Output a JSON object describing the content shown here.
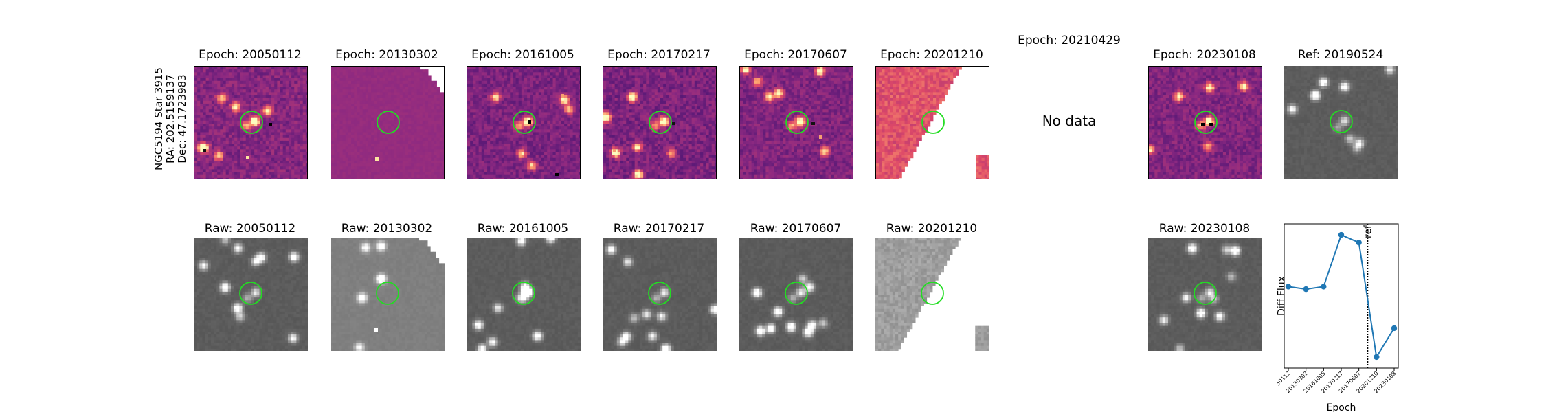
{
  "target": {
    "name": "NGC5194 Star 3915",
    "ra": "RA: 202.5159137",
    "dec": "Dec: 47.1723983"
  },
  "diff_row": {
    "titles": [
      "Epoch: 20050112",
      "Epoch: 20130302",
      "Epoch: 20161005",
      "Epoch: 20170217",
      "Epoch: 20170607",
      "Epoch: 20201210",
      "Epoch: 20210429",
      "Epoch: 20230108",
      "Ref: 20190524"
    ],
    "no_data_text": "No data"
  },
  "raw_row": {
    "titles": [
      "Raw: 20050112",
      "Raw: 20130302",
      "Raw: 20161005",
      "Raw: 20170217",
      "Raw: 20170607",
      "Raw: 20201210",
      "Raw: 20230108"
    ]
  },
  "colors": {
    "aperture_circle": "#22dd22",
    "line": "#1f77b4",
    "diff_base": "#a23b78",
    "diff_warm": "#f58f5f",
    "raw_base": "#6a6a6a"
  },
  "chart_data": {
    "type": "line",
    "x": [
      "20050112",
      "20130302",
      "20161005",
      "20170217",
      "20170607",
      "20201210",
      "20230108"
    ],
    "y": [
      0.31,
      0.28,
      0.31,
      0.92,
      0.83,
      -0.52,
      -0.18
    ],
    "xlabel": "Epoch",
    "ylabel": "Diff Flux",
    "ylim": [
      -0.65,
      1.05
    ],
    "reference_line": {
      "after_index": 4,
      "label": "ref"
    },
    "grid": false
  }
}
